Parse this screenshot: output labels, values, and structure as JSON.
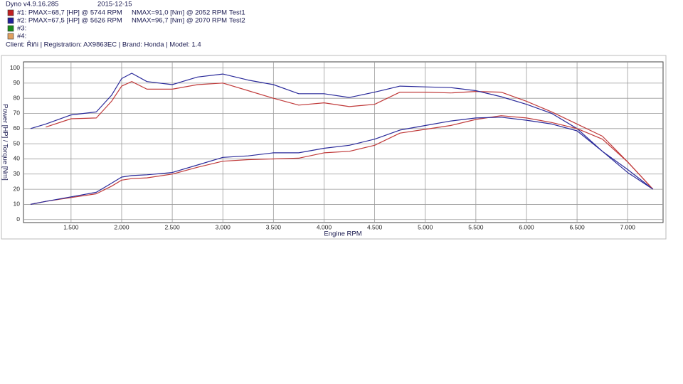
{
  "chart_data": {
    "type": "line",
    "title": "Dyno v4.9.16.285",
    "date": "2015-12-15",
    "legend": [
      {
        "color": "#c02020",
        "label": "#1:  PMAX=68,7 [HP] @ 5744 RPM",
        "nmax": "NMAX=91,0 [Nm] @ 2052 RPM",
        "test": "Test1"
      },
      {
        "color": "#20209a",
        "label": "#2:  PMAX=67,5 [HP] @ 5626 RPM",
        "nmax": "NMAX=96,7 [Nm] @ 2070 RPM",
        "test": "Test2"
      },
      {
        "color": "#1a8a1a",
        "label": "#3:"
      },
      {
        "color": "#e0a060",
        "label": "#4:"
      }
    ],
    "client": "Client: Řiňi | Registration: AX9863EC | Brand: Honda | Model: 1.4",
    "x_label": "Engine RPM",
    "y_label": "Power [HP] / Torque [Nm]",
    "x": [
      1100,
      1250,
      1500,
      1750,
      1900,
      2000,
      2100,
      2250,
      2500,
      2750,
      3000,
      3250,
      3500,
      3750,
      4000,
      4250,
      4500,
      4750,
      5000,
      5250,
      5500,
      5750,
      6000,
      6250,
      6500,
      6750,
      7000,
      7250
    ],
    "series": [
      {
        "color": "#c03a3a",
        "values": [
          null,
          61,
          66.5,
          67,
          78,
          88,
          91,
          86,
          86,
          89,
          90,
          85,
          80,
          75.5,
          77,
          74.5,
          76,
          84,
          84,
          83.5,
          84.5,
          84,
          78,
          71,
          63,
          55,
          38,
          20
        ]
      },
      {
        "color": "#2a2a9a",
        "values": [
          60,
          63,
          69,
          71,
          82,
          93,
          96.5,
          91,
          89,
          94,
          96,
          92,
          89,
          83,
          83,
          80.5,
          84,
          88,
          87.5,
          87,
          85,
          81,
          76,
          70,
          60,
          45,
          33,
          20
        ]
      },
      {
        "color": "#c03a3a",
        "values": [
          10,
          12,
          14.5,
          17,
          22,
          26,
          27,
          27.5,
          30,
          34.5,
          38.5,
          39.5,
          40,
          40.5,
          44,
          45,
          49,
          57,
          59.5,
          62,
          66,
          68.5,
          67,
          64,
          60,
          53,
          38,
          20
        ]
      },
      {
        "color": "#2a2a9a",
        "values": [
          10,
          12,
          15,
          18,
          24,
          28,
          29,
          29.5,
          31,
          36,
          41,
          42,
          44,
          44,
          47,
          49,
          53,
          59,
          62,
          65,
          67,
          67.5,
          65.5,
          63,
          58.5,
          45,
          31,
          20
        ]
      }
    ],
    "xlim": [
      1030,
      7350
    ],
    "ylim": [
      -2,
      104
    ],
    "xticks": [
      {
        "value": 1500,
        "label": "1.500"
      },
      {
        "value": 2000,
        "label": "2.000"
      },
      {
        "value": 2500,
        "label": "2.500"
      },
      {
        "value": 3000,
        "label": "3.000"
      },
      {
        "value": 3500,
        "label": "3.500"
      },
      {
        "value": 4000,
        "label": "4.000"
      },
      {
        "value": 4500,
        "label": "4.500"
      },
      {
        "value": 5000,
        "label": "5.000"
      },
      {
        "value": 5500,
        "label": "5.500"
      },
      {
        "value": 6000,
        "label": "6.000"
      },
      {
        "value": 6500,
        "label": "6.500"
      },
      {
        "value": 7000,
        "label": "7.000"
      }
    ],
    "yticks": [
      0,
      10,
      20,
      30,
      40,
      50,
      60,
      70,
      80,
      90,
      100
    ],
    "grid": true
  }
}
